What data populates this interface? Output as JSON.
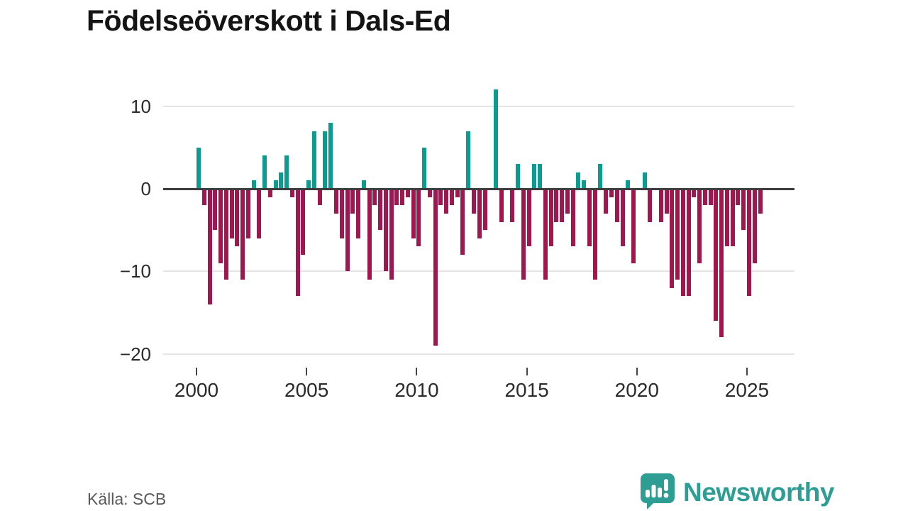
{
  "title": "Födelseöverskott i Dals-Ed",
  "source_label": "Källa: SCB",
  "logo_text": "Newsworthy",
  "colors": {
    "positive_bar": "#0a9c90",
    "negative_bar": "#a0174f",
    "zero_axis": "#3d3d3d",
    "gridline": "#e4e4e4",
    "logo_teal": "#2e9e95",
    "title_text": "#141414",
    "axis_text": "#2b2b2b",
    "source_text": "#5a5a5a"
  },
  "chart_data": {
    "type": "bar",
    "title": "Födelseöverskott i Dals-Ed",
    "frequency": "quarterly",
    "start_year": 2000,
    "start_quarter": 1,
    "xlabel": "",
    "ylabel": "",
    "ylim": [
      -20,
      12
    ],
    "grid": true,
    "y_ticks": [
      10,
      0,
      -10,
      -20
    ],
    "y_tick_labels": [
      "10",
      "0",
      "−10",
      "−20"
    ],
    "x_tick_labels": [
      "2000",
      "2005",
      "2010",
      "2015",
      "2020",
      "2025"
    ],
    "values": [
      5,
      -2,
      -14,
      -5,
      -9,
      -11,
      -6,
      -7,
      -11,
      -6,
      1,
      -6,
      4,
      -1,
      1,
      2,
      4,
      -1,
      -13,
      -8,
      1,
      7,
      -2,
      7,
      8,
      -3,
      -6,
      -10,
      -3,
      -6,
      1,
      -11,
      -2,
      -5,
      -10,
      -11,
      -2,
      -2,
      -1,
      -6,
      -7,
      5,
      -1,
      -19,
      -2,
      -3,
      -2,
      -1,
      -8,
      7,
      -3,
      -6,
      -5,
      0,
      12,
      -4,
      0,
      -4,
      3,
      -11,
      -7,
      3,
      3,
      -11,
      -7,
      -4,
      -4,
      -3,
      -7,
      2,
      1,
      -7,
      -11,
      3,
      -3,
      -1,
      -4,
      -7,
      1,
      -9,
      0,
      2,
      -4,
      0,
      -4,
      -3,
      -12,
      -11,
      -13,
      -13,
      -1,
      -9,
      -2,
      -2,
      -16,
      -18,
      -7,
      -7,
      -2,
      -5,
      -13,
      -9,
      -3
    ]
  }
}
